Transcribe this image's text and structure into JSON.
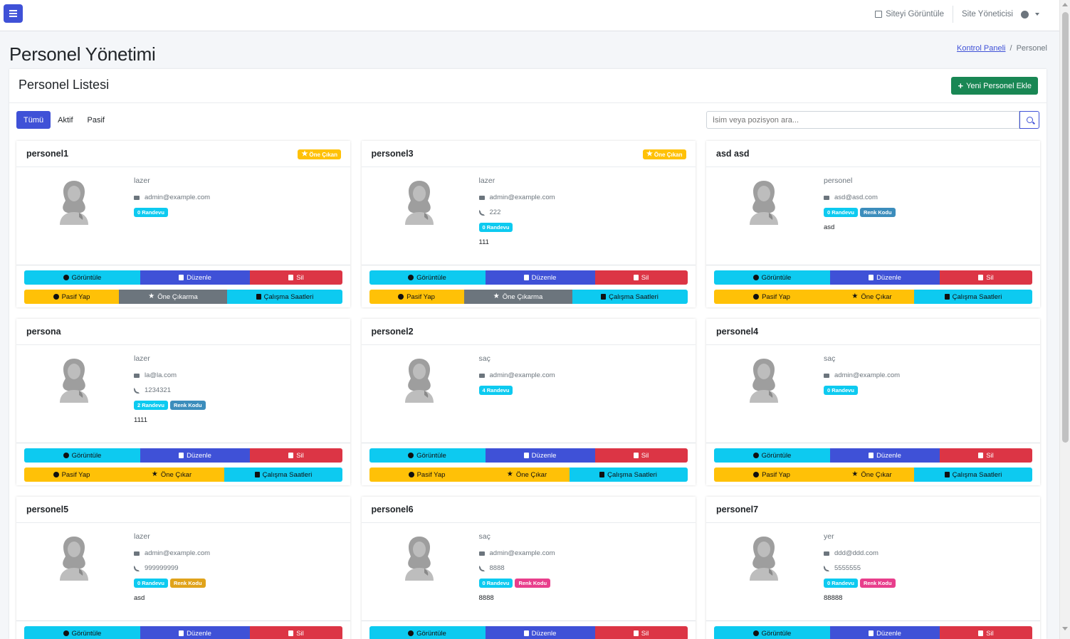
{
  "header": {
    "view_site": "Siteyi Görüntüle",
    "user": "Site Yöneticisi"
  },
  "page": {
    "title": "Personel Yönetimi",
    "breadcrumb_home": "Kontrol Paneli",
    "breadcrumb_sep": "/",
    "breadcrumb_current": "Personel"
  },
  "card": {
    "title": "Personel Listesi",
    "add_button": "Yeni Personel Ekle"
  },
  "filters": {
    "all": "Tümü",
    "active": "Aktif",
    "passive": "Pasif"
  },
  "search": {
    "placeholder": "İsim veya pozisyon ara..."
  },
  "labels": {
    "featured": "Öne Çıkan",
    "view": "Görüntüle",
    "edit": "Düzenle",
    "delete": "Sil",
    "make_passive": "Pasif Yap",
    "unfeature": "Öne Çıkarma",
    "feature": "Öne Çıkar",
    "hours": "Çalışma Saatleri",
    "color_code": "Renk Kodu"
  },
  "colors": {
    "primary": "#3f51d7",
    "success": "#198754",
    "info": "#0dcaf0",
    "danger": "#dc3545",
    "warning": "#ffc107",
    "secondary": "#6c757d"
  },
  "staff": [
    {
      "name": "personel1",
      "featured": true,
      "position": "lazer",
      "email": "admin@example.com",
      "phone": "",
      "appointments": "0 Randevu",
      "color_code": "",
      "notes": ""
    },
    {
      "name": "personel3",
      "featured": true,
      "position": "lazer",
      "email": "admin@example.com",
      "phone": "222",
      "appointments": "0 Randevu",
      "color_code": "",
      "notes": "111"
    },
    {
      "name": "asd asd",
      "featured": false,
      "position": "personel",
      "email": "asd@asd.com",
      "phone": "",
      "appointments": "0 Randevu",
      "color_code": "blue",
      "notes": "asd"
    },
    {
      "name": "persona",
      "featured": false,
      "position": "lazer",
      "email": "la@la.com",
      "phone": "1234321",
      "appointments": "2 Randevu",
      "color_code": "blue",
      "notes": "1111"
    },
    {
      "name": "personel2",
      "featured": false,
      "position": "saç",
      "email": "admin@example.com",
      "phone": "",
      "appointments": "4 Randevu",
      "color_code": "",
      "notes": ""
    },
    {
      "name": "personel4",
      "featured": false,
      "position": "saç",
      "email": "admin@example.com",
      "phone": "",
      "appointments": "0 Randevu",
      "color_code": "",
      "notes": ""
    },
    {
      "name": "personel5",
      "featured": false,
      "position": "lazer",
      "email": "admin@example.com",
      "phone": "999999999",
      "appointments": "0 Randevu",
      "color_code": "orange",
      "notes": "asd"
    },
    {
      "name": "personel6",
      "featured": false,
      "position": "saç",
      "email": "admin@example.com",
      "phone": "8888",
      "appointments": "0 Randevu",
      "color_code": "pink",
      "notes": "8888"
    },
    {
      "name": "personel7",
      "featured": false,
      "position": "yer",
      "email": "ddd@ddd.com",
      "phone": "5555555",
      "appointments": "0 Randevu",
      "color_code": "pink",
      "notes": "88888"
    }
  ]
}
